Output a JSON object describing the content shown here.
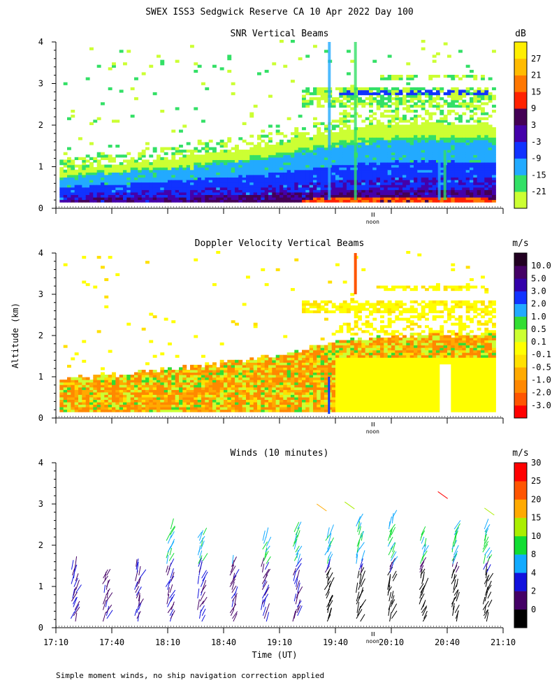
{
  "figure_title": "SWEX ISS3 Sedgwick Reserve CA  10 Apr 2022 Day 100",
  "y_axis_label": "Altitude (km)",
  "x_axis_label": "Time (UT)",
  "footnote": "Simple moment winds, no ship navigation correction applied",
  "noon_label": "noon",
  "chart_data": [
    {
      "type": "heatmap",
      "title": "SNR Vertical Beams",
      "ylim": [
        0,
        4
      ],
      "yticks": [
        "0",
        "1",
        "2",
        "3",
        "4"
      ],
      "xlim": [
        "17:10",
        "21:10"
      ],
      "colorbar": {
        "unit": "dB",
        "levels": [
          -21,
          -15,
          -9,
          -3,
          3,
          9,
          15,
          21,
          27
        ],
        "labels": [
          "-21",
          "-15",
          "-9",
          "-3",
          "3",
          "9",
          "15",
          "21",
          "27"
        ],
        "colors": [
          "#ccff33",
          "#33e066",
          "#22aaff",
          "#1133ff",
          "#4400aa",
          "#440055",
          "#ff2200",
          "#ff7700",
          "#ffbb00",
          "#ffee00"
        ]
      },
      "description_fields": {
        "boundary_layer_top_km": [
          [
            0,
            0.9
          ],
          [
            40,
            1.05
          ],
          [
            80,
            1.25
          ],
          [
            120,
            1.5
          ],
          [
            150,
            1.85
          ],
          [
            185,
            2.0
          ],
          [
            240,
            2.0
          ]
        ],
        "cloud_layer_km": [
          2.5,
          2.8
        ]
      }
    },
    {
      "type": "heatmap",
      "title": "Doppler Velocity Vertical Beams",
      "ylim": [
        0,
        4
      ],
      "yticks": [
        "0",
        "1",
        "2",
        "3",
        "4"
      ],
      "xlim": [
        "17:10",
        "21:10"
      ],
      "colorbar": {
        "unit": "m/s",
        "labels": [
          "-3.0",
          "-2.0",
          "-1.0",
          "-0.5",
          "-0.1",
          "0.1",
          "0.5",
          "1.0",
          "2.0",
          "3.0",
          "5.0",
          "10.0"
        ],
        "colors": [
          "#ff0000",
          "#ff5500",
          "#ff8800",
          "#ffaa00",
          "#ffe000",
          "#ffff00",
          "#ccff33",
          "#33dd33",
          "#22aaff",
          "#1133ff",
          "#3300aa",
          "#440066",
          "#220022"
        ]
      }
    },
    {
      "type": "scatter",
      "title": "Winds (10 minutes)",
      "ylim": [
        0,
        4
      ],
      "yticks": [
        "0",
        "1",
        "2",
        "3",
        "4"
      ],
      "x": [
        "17:10",
        "17:40",
        "18:10",
        "18:40",
        "19:10",
        "19:40",
        "20:10",
        "20:40",
        "21:10"
      ],
      "xticks": [
        "17:10",
        "17:40",
        "18:10",
        "18:40",
        "19:10",
        "19:40",
        "20:10",
        "20:40",
        "21:10"
      ],
      "colorbar": {
        "unit": "m/s",
        "labels": [
          "0",
          "2",
          "4",
          "8",
          "10",
          "15",
          "20",
          "25",
          "30"
        ],
        "colors": [
          "#000000",
          "#440066",
          "#1111dd",
          "#11aaff",
          "#11dd33",
          "#aaee00",
          "#ffaa00",
          "#ff5500",
          "#ff0000"
        ]
      },
      "profile_tops_km": [
        1.5,
        1.3,
        1.5,
        2.4,
        2.3,
        1.6,
        2.2,
        2.4,
        2.3,
        2.6,
        2.7,
        2.3,
        2.4,
        2.4
      ]
    }
  ]
}
